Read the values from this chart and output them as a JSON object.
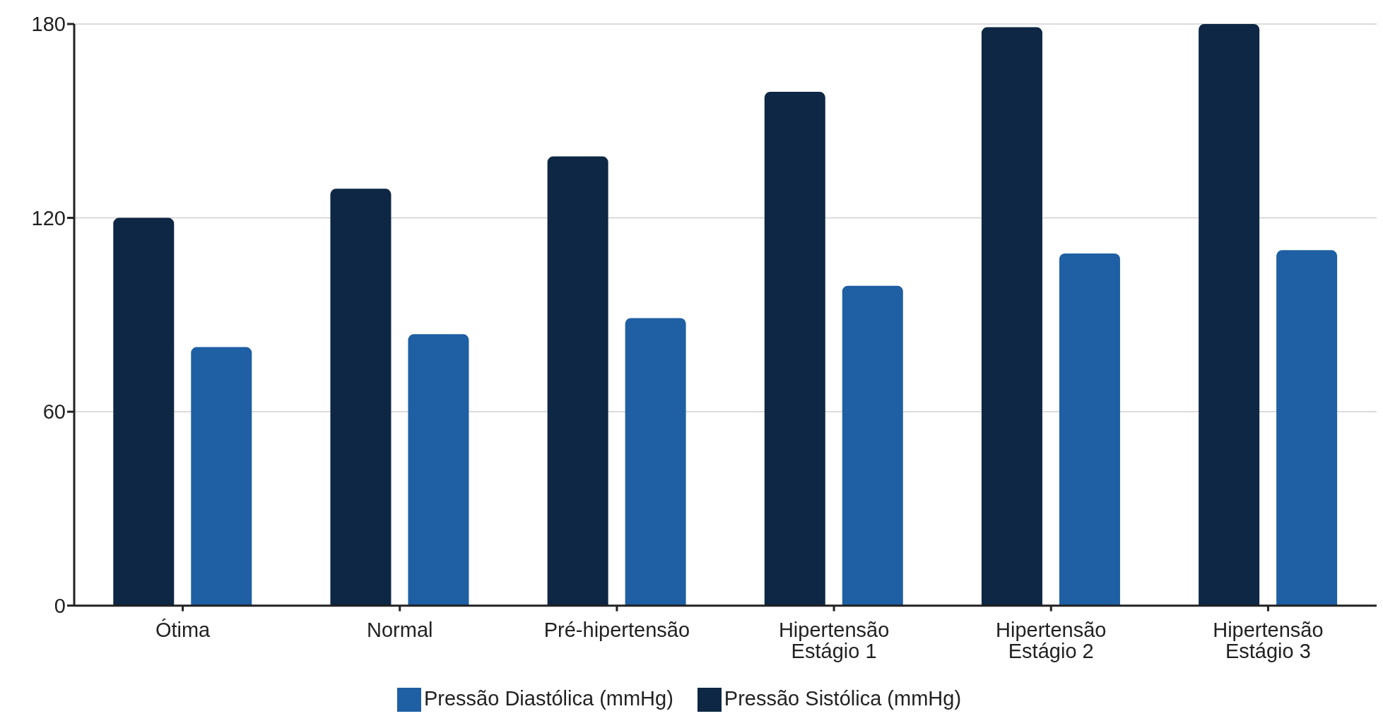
{
  "chart_data": {
    "type": "bar",
    "categories": [
      "Ótima",
      "Normal",
      "Pré-hipertensão",
      "Hipertensão Estágio 1",
      "Hipertensão Estágio 2",
      "Hipertensão Estágio 3"
    ],
    "series": [
      {
        "name": "Pressão Sistólica (mmHg)",
        "color": "#0d2744",
        "values": [
          120,
          129,
          139,
          159,
          179,
          180
        ]
      },
      {
        "name": "Pressão Diastólica (mmHg)",
        "color": "#1f5fa3",
        "values": [
          80,
          84,
          89,
          99,
          109,
          110
        ]
      }
    ],
    "ylim": [
      0,
      180
    ],
    "yticks": [
      0,
      60,
      120,
      180
    ],
    "grid": "y",
    "legend": "bottom"
  }
}
